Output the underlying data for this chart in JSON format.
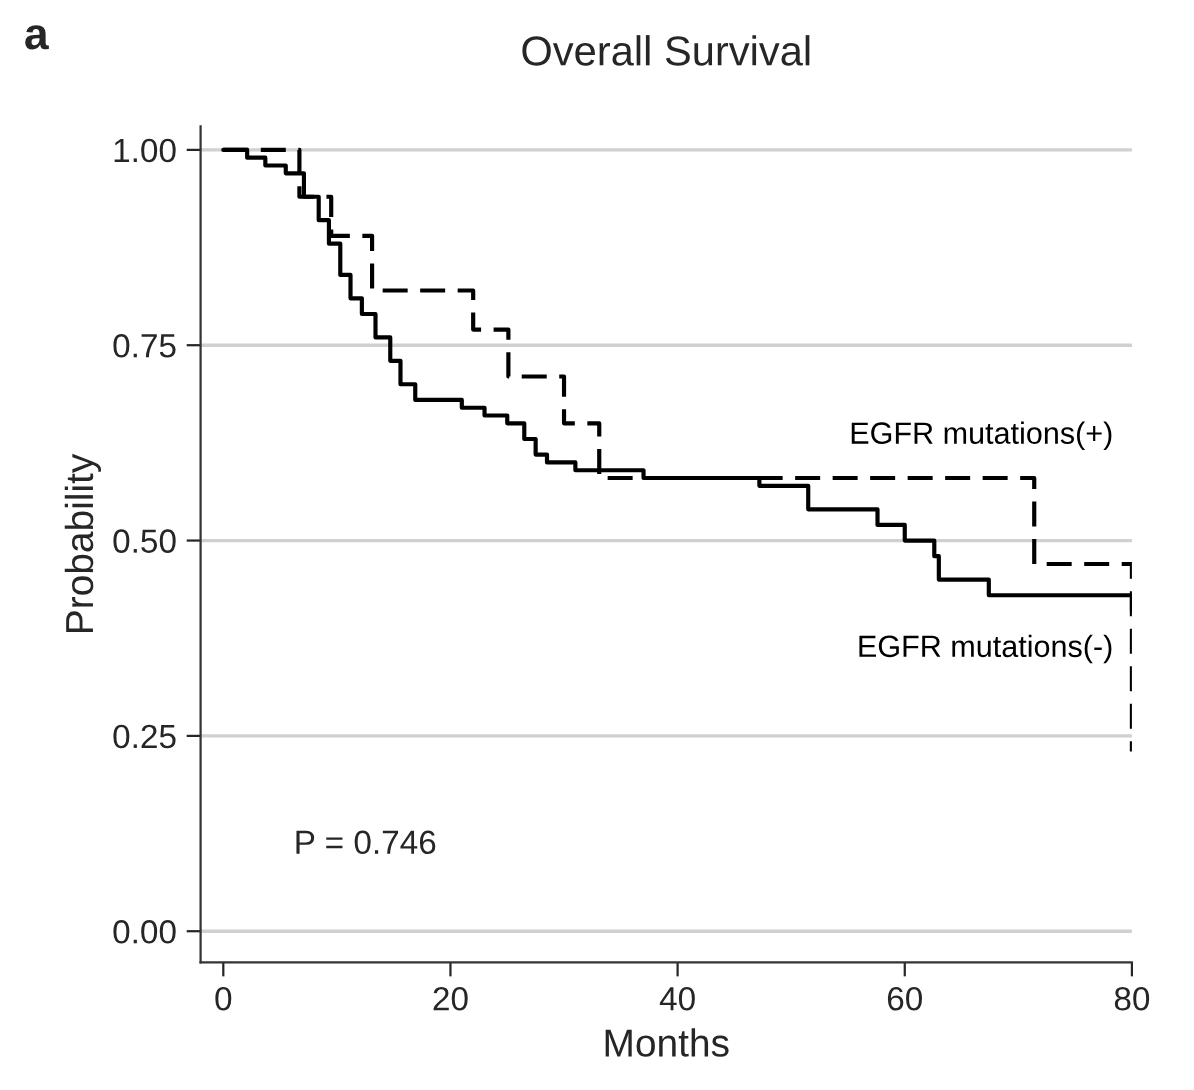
{
  "chart_data": {
    "type": "step",
    "title": "Overall Survival",
    "xlabel": "Months",
    "ylabel": "Probability",
    "annotations": [
      "a",
      "P = 0.746"
    ],
    "xlim": [
      -2,
      80
    ],
    "xticks": [
      0,
      20,
      40,
      60,
      80
    ],
    "ylim": [
      -0.04,
      1.03
    ],
    "yticks": [
      {
        "value": 0,
        "label": "0.00"
      },
      {
        "value": 0.25,
        "label": "0.25"
      },
      {
        "value": 0.5,
        "label": "0.50"
      },
      {
        "value": 0.75,
        "label": "0.75"
      },
      {
        "value": 1,
        "label": "1.00"
      }
    ],
    "grid": "y",
    "legend": false,
    "marker": "none",
    "series": [
      {
        "name": "EGFR mutations(+)",
        "color": "#000000",
        "line_style": "dashed",
        "x": [
          0,
          6.7,
          9.5,
          13.1,
          22,
          25.1,
          30,
          33.1,
          71.4,
          80
        ],
        "values": [
          1.0,
          0.94,
          0.89,
          0.82,
          0.77,
          0.71,
          0.65,
          0.58,
          0.47,
          0.23
        ]
      },
      {
        "name": "EGFR mutations(-)",
        "color": "#000000",
        "line_style": "solid",
        "x": [
          0,
          2.1,
          3.7,
          5.5,
          7.1,
          8.4,
          9.3,
          10.3,
          11.2,
          12.2,
          13.4,
          14.7,
          15.6,
          16.9,
          21,
          23,
          25,
          26.5,
          27.5,
          28.5,
          31,
          37,
          47.2,
          51.5,
          57.6,
          60,
          62.6,
          63,
          67.4,
          80
        ],
        "values": [
          1.0,
          0.99,
          0.98,
          0.97,
          0.94,
          0.91,
          0.88,
          0.84,
          0.81,
          0.79,
          0.76,
          0.73,
          0.7,
          0.68,
          0.67,
          0.66,
          0.65,
          0.63,
          0.61,
          0.6,
          0.59,
          0.58,
          0.57,
          0.54,
          0.52,
          0.5,
          0.48,
          0.45,
          0.43,
          0.41
        ]
      }
    ]
  }
}
